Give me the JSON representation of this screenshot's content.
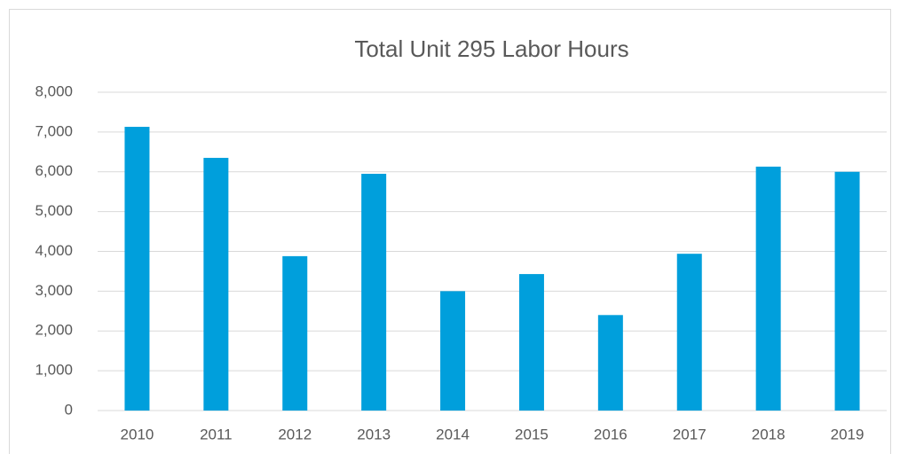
{
  "chart_data": {
    "type": "bar",
    "title": "Total Unit 295 Labor Hours",
    "categories": [
      "2010",
      "2011",
      "2012",
      "2013",
      "2014",
      "2015",
      "2016",
      "2017",
      "2018",
      "2019"
    ],
    "values": [
      7130,
      6350,
      3880,
      5950,
      3000,
      3430,
      2400,
      3940,
      6130,
      6000
    ],
    "color": "#009fdc",
    "ylim": [
      0,
      8000
    ],
    "yticks": [
      0,
      {
        "value": 1000,
        "label": "1,000"
      },
      {
        "value": 2000,
        "label": "2,000"
      },
      {
        "value": 3000,
        "label": "3,000"
      },
      {
        "value": 4000,
        "label": "4,000"
      },
      {
        "value": 5000,
        "label": "5,000"
      },
      {
        "value": 6000,
        "label": "6,000"
      },
      {
        "value": 7000,
        "label": "7,000"
      },
      {
        "value": 8000,
        "label": "8,000"
      }
    ],
    "grid": true
  }
}
